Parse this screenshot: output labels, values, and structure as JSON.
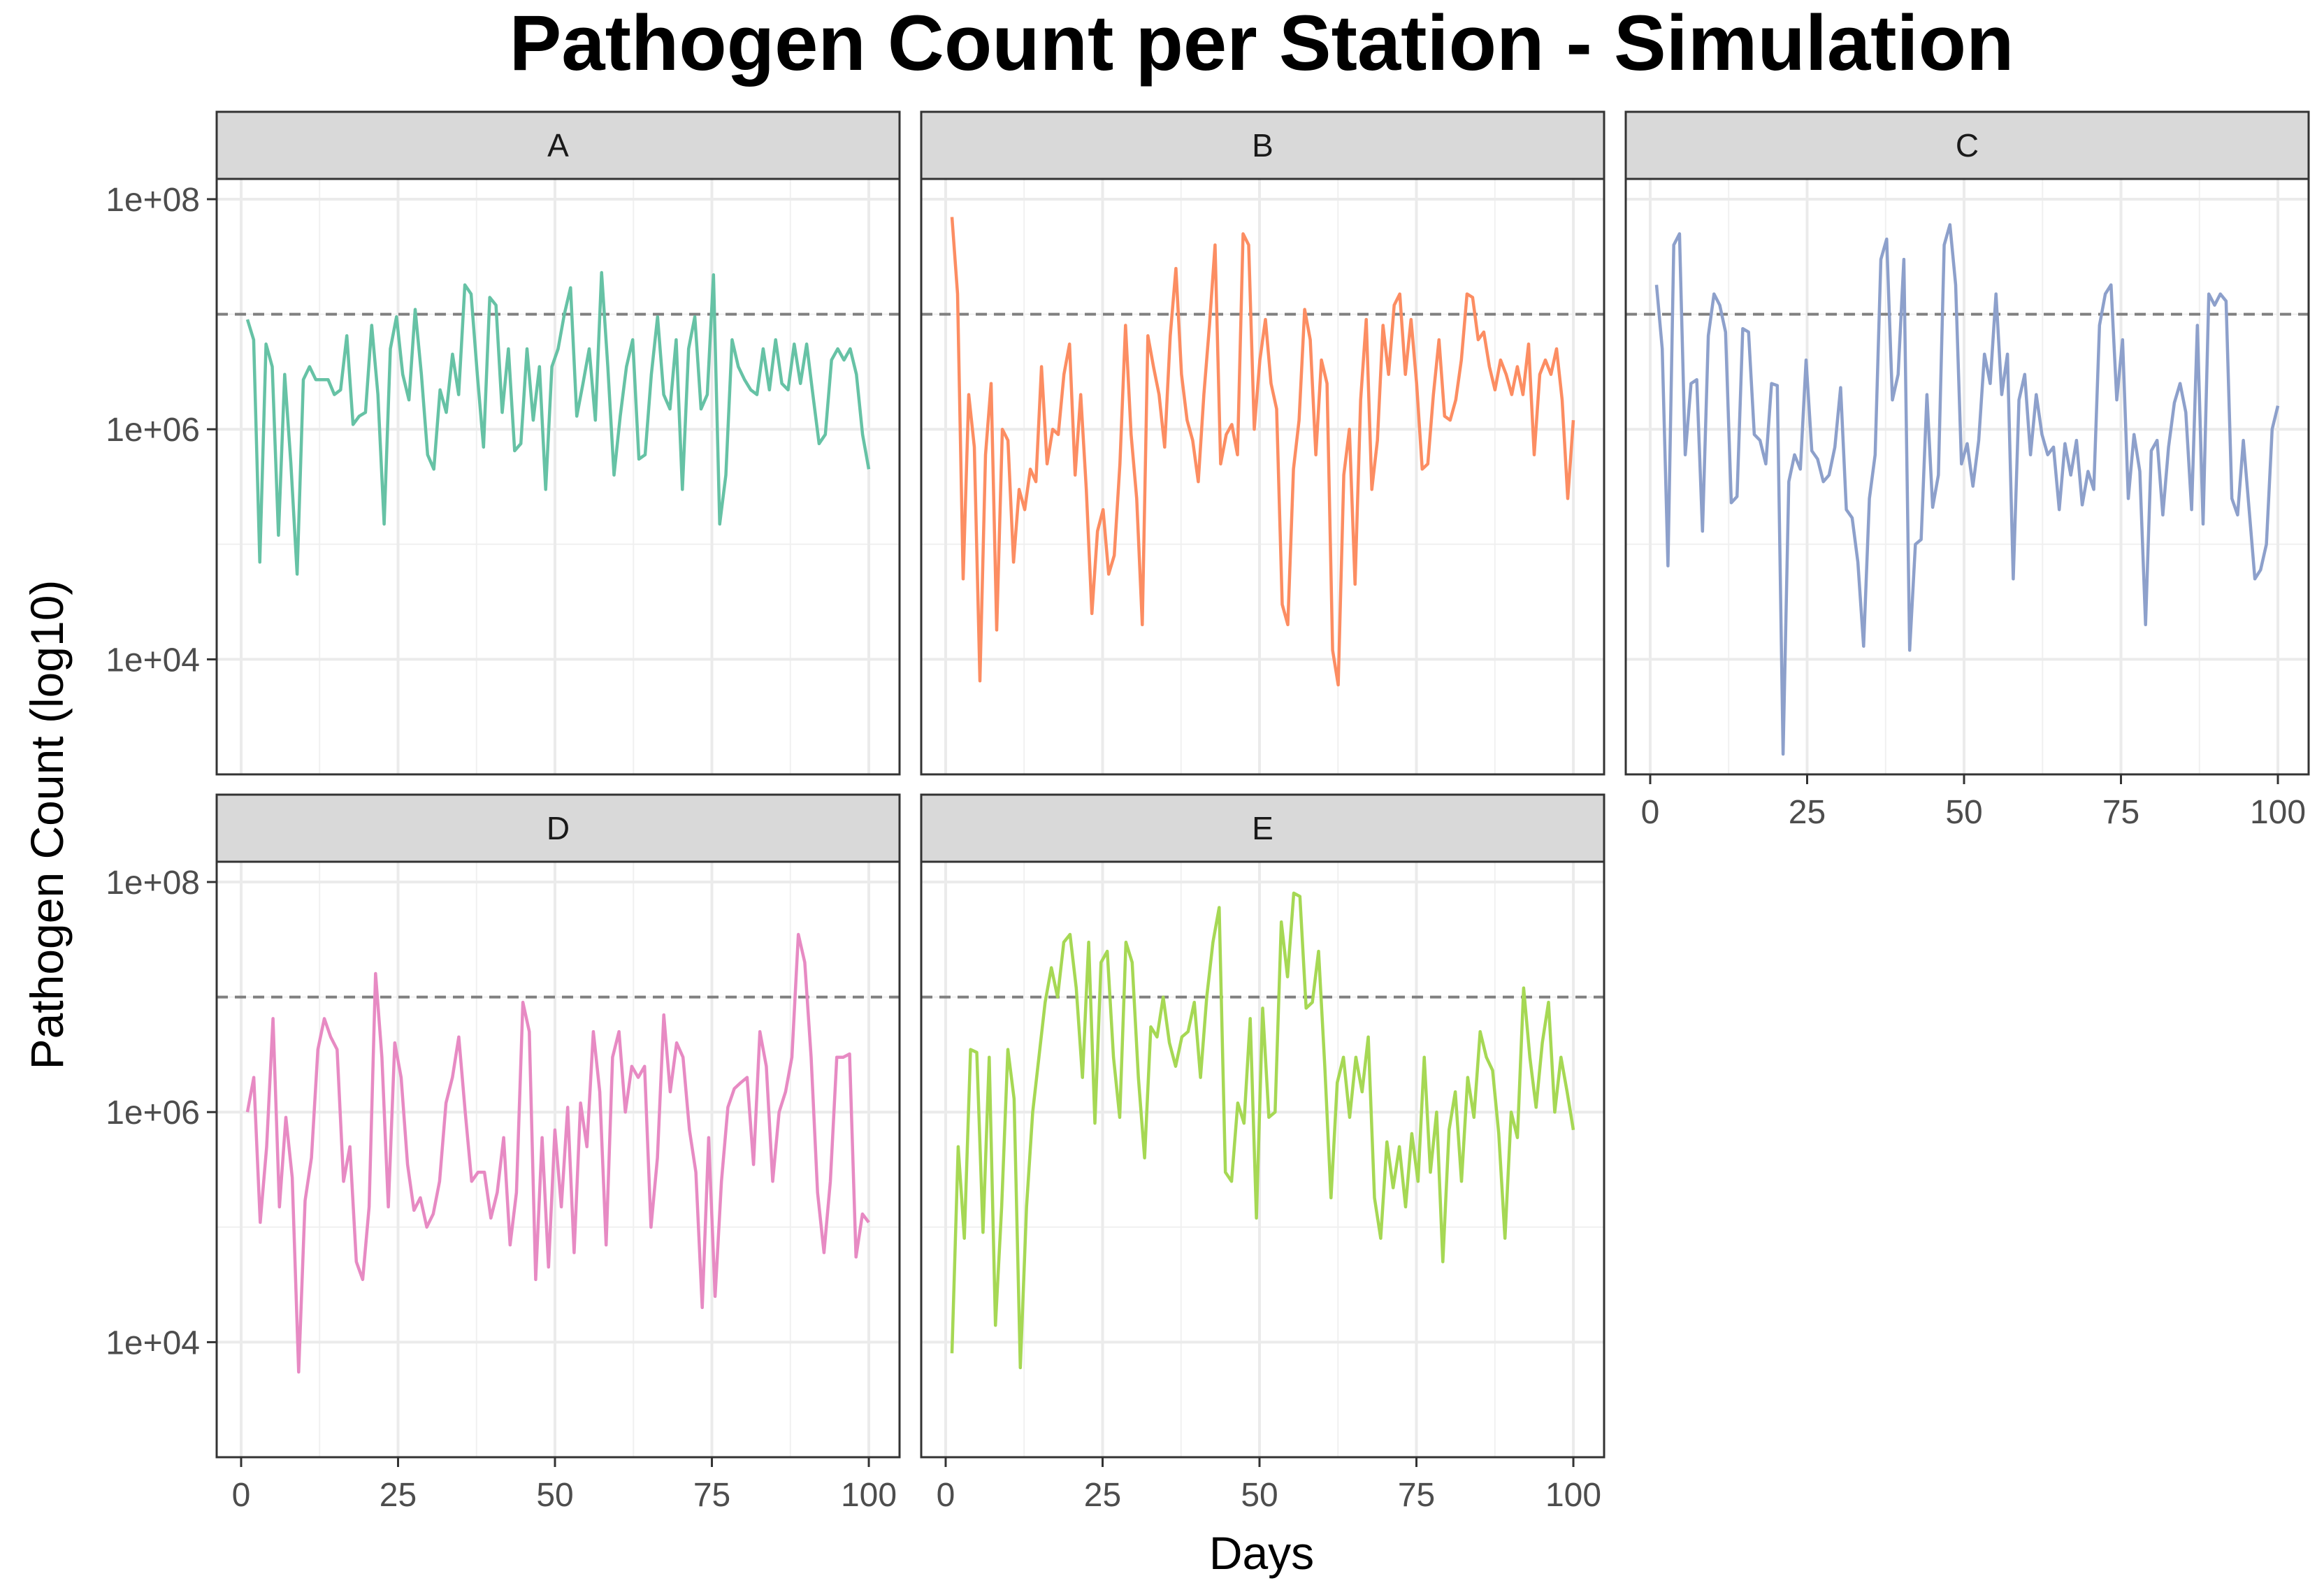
{
  "chart_data": {
    "type": "line",
    "title": "Pathogen Count per Station - Simulation",
    "xlabel": "Days",
    "ylabel": "Pathogen Count (log10)",
    "x_scale": "linear",
    "y_scale": "log10",
    "xlim": [
      1,
      100
    ],
    "ylim": [
      1000,
      150000000
    ],
    "x_ticks": [
      0,
      25,
      50,
      75,
      100
    ],
    "x_tick_labels": [
      "0",
      "25",
      "50",
      "75",
      "100"
    ],
    "y_ticks": [
      10000,
      1000000,
      100000000
    ],
    "y_tick_labels": [
      "1e+04",
      "1e+06",
      "1e+08"
    ],
    "threshold": 10000000,
    "threshold_style": "dashed grey horizontal line",
    "grid": true,
    "legend": "none",
    "facet_layout": "3 columns x 2 rows",
    "series": [
      {
        "name": "A",
        "color": "#66c2a5",
        "values": [
          9000000,
          6000000,
          70000,
          5500000,
          3500000,
          120000,
          3000000,
          500000,
          55000,
          2700000,
          3500000,
          2700000,
          2700000,
          2700000,
          2000000,
          2200000,
          6500000,
          1100000,
          1300000,
          1400000,
          8000000,
          2000000,
          150000,
          5000000,
          9500000,
          3000000,
          1800000,
          11000000,
          3000000,
          600000,
          450000,
          2200000,
          1400000,
          4500000,
          2000000,
          18000000,
          15000000,
          3000000,
          700000,
          14000000,
          12000000,
          1400000,
          5000000,
          650000,
          750000,
          5000000,
          1200000,
          3500000,
          300000,
          3500000,
          5000000,
          10000000,
          17000000,
          1300000,
          2500000,
          5000000,
          1200000,
          23000000,
          3500000,
          400000,
          1300000,
          3500000,
          6000000,
          550000,
          600000,
          3000000,
          9500000,
          2000000,
          1500000,
          6000000,
          300000,
          5000000,
          9500000,
          1500000,
          2000000,
          22000000,
          150000,
          400000,
          6000000,
          3500000,
          2700000,
          2200000,
          2000000,
          5000000,
          2200000,
          6000000,
          2500000,
          2200000,
          5500000,
          2500000,
          5500000,
          2000000,
          750000,
          900000,
          4000000,
          5000000,
          4000000,
          5000000,
          3000000,
          900000,
          450000
        ]
      },
      {
        "name": "B",
        "color": "#fc8d62",
        "values": [
          70000000,
          15000000,
          50000,
          2000000,
          700000,
          6500,
          600000,
          2500000,
          18000,
          1000000,
          800000,
          70000,
          300000,
          200000,
          450000,
          350000,
          3500000,
          500000,
          1000000,
          900000,
          3000000,
          5500000,
          400000,
          2000000,
          300000,
          25000,
          130000,
          200000,
          55000,
          80000,
          500000,
          8000000,
          900000,
          250000,
          20000,
          6500000,
          3500000,
          2000000,
          700000,
          6500000,
          25000000,
          3000000,
          1200000,
          800000,
          350000,
          2000000,
          8000000,
          40000000,
          500000,
          900000,
          1100000,
          600000,
          50000000,
          40000000,
          1000000,
          4000000,
          9000000,
          2500000,
          1500000,
          30000,
          20000,
          450000,
          1200000,
          11000000,
          6000000,
          600000,
          4000000,
          2500000,
          12000,
          6000,
          400000,
          1000000,
          45000,
          1800000,
          9000000,
          300000,
          800000,
          8000000,
          3000000,
          12000000,
          15000000,
          3000000,
          9000000,
          2500000,
          450000,
          500000,
          2000000,
          6000000,
          1300000,
          1200000,
          1800000,
          4000000,
          15000000,
          14000000,
          6000000,
          7000000,
          3500000,
          2200000,
          4000000,
          3000000,
          2000000,
          3500000,
          2000000,
          5500000,
          600000,
          3000000,
          4000000,
          3000000,
          5000000,
          1800000,
          250000,
          1200000
        ]
      },
      {
        "name": "C",
        "color": "#8da0cb",
        "values": [
          18000000,
          5000000,
          65000,
          40000000,
          50000000,
          600000,
          2500000,
          2700000,
          130000,
          6500000,
          15000000,
          12000000,
          7000000,
          230000,
          260000,
          7500000,
          7000000,
          900000,
          800000,
          500000,
          2500000,
          2400000,
          1500,
          350000,
          600000,
          450000,
          4000000,
          650000,
          550000,
          350000,
          400000,
          700000,
          2300000,
          200000,
          170000,
          70000,
          13000,
          250000,
          600000,
          30000000,
          45000000,
          1800000,
          3000000,
          30000000,
          12000,
          100000,
          110000,
          2000000,
          210000,
          400000,
          40000000,
          60000000,
          18000000,
          500000,
          750000,
          320000,
          800000,
          4500000,
          2500000,
          15000000,
          2000000,
          4500000,
          50000,
          1800000,
          3000000,
          600000,
          2000000,
          900000,
          600000,
          700000,
          200000,
          750000,
          400000,
          800000,
          220000,
          430000,
          300000,
          8000000,
          15000000,
          18000000,
          1800000,
          6000000,
          250000,
          900000,
          430000,
          20000,
          650000,
          800000,
          180000,
          700000,
          1700000,
          2500000,
          1400000,
          200000,
          8000000,
          150000,
          15000000,
          12000000,
          15000000,
          13000000,
          250000,
          180000,
          800000,
          200000,
          50000,
          60000,
          100000,
          1000000,
          1600000
        ]
      },
      {
        "name": "D",
        "color": "#e78ac3",
        "values": [
          1000000,
          2000000,
          110000,
          500000,
          6500000,
          150000,
          900000,
          270000,
          5500,
          170000,
          400000,
          3500000,
          6500000,
          4500000,
          3500000,
          250000,
          500000,
          50000,
          35000,
          150000,
          16000000,
          3000000,
          150000,
          4000000,
          2000000,
          350000,
          140000,
          180000,
          100000,
          130000,
          250000,
          1200000,
          2000000,
          4500000,
          1000000,
          250000,
          300000,
          300000,
          120000,
          200000,
          600000,
          70000,
          200000,
          9000000,
          5000000,
          35000,
          600000,
          45000,
          700000,
          150000,
          1100000,
          60000,
          1200000,
          500000,
          5000000,
          1500000,
          70000,
          3000000,
          5000000,
          1000000,
          2500000,
          2000000,
          2500000,
          100000,
          400000,
          7000000,
          1500000,
          4000000,
          3000000,
          700000,
          300000,
          20000,
          600000,
          25000,
          250000,
          1100000,
          1600000,
          1800000,
          2000000,
          350000,
          5000000,
          2500000,
          250000,
          1000000,
          1500000,
          3000000,
          35000000,
          20000000,
          3000000,
          200000,
          60000,
          250000,
          3000000,
          3000000,
          3200000,
          55000,
          130000,
          110000
        ]
      },
      {
        "name": "E",
        "color": "#a6d854",
        "values": [
          8000,
          500000,
          80000,
          3500000,
          3300000,
          90000,
          3000000,
          14000,
          150000,
          3500000,
          1300000,
          6000,
          150000,
          1000000,
          3000000,
          9000000,
          18000000,
          10000000,
          30000000,
          35000000,
          12000000,
          2000000,
          30000000,
          800000,
          20000000,
          25000000,
          3000000,
          900000,
          30000000,
          20000000,
          2000000,
          400000,
          5500000,
          4500000,
          10000000,
          4000000,
          2500000,
          4500000,
          5000000,
          9000000,
          2000000,
          10000000,
          30000000,
          60000000,
          300000,
          250000,
          1200000,
          800000,
          6500000,
          120000,
          8000000,
          900000,
          1000000,
          45000000,
          15000000,
          80000000,
          75000000,
          8000000,
          9000000,
          25000000,
          2500000,
          180000,
          1800000,
          3000000,
          900000,
          3000000,
          1500000,
          4500000,
          180000,
          80000,
          550000,
          220000,
          500000,
          150000,
          650000,
          250000,
          3000000,
          300000,
          1000000,
          50000,
          700000,
          1500000,
          250000,
          2000000,
          900000,
          5000000,
          3000000,
          2300000,
          650000,
          80000,
          1000000,
          600000,
          12000000,
          3000000,
          1100000,
          4000000,
          9000000,
          1000000,
          3000000,
          1500000,
          700000
        ]
      }
    ]
  }
}
